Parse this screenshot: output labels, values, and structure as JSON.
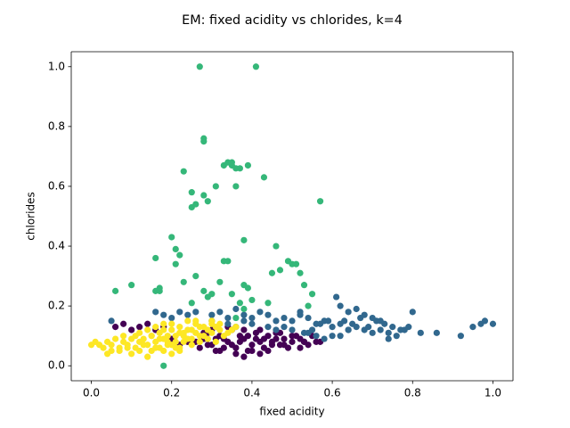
{
  "chart_data": {
    "type": "scatter",
    "title": "EM: fixed acidity vs chlorides, k=4",
    "xlabel": "fixed acidity",
    "ylabel": "chlorides",
    "xlim": [
      -0.05,
      1.05
    ],
    "ylim": [
      -0.05,
      1.05
    ],
    "xticks": [
      "0.0",
      "0.2",
      "0.4",
      "0.6",
      "0.8",
      "1.0"
    ],
    "yticks": [
      "0.0",
      "0.2",
      "0.4",
      "0.6",
      "0.8",
      "1.0"
    ],
    "grid": false,
    "legend": "none",
    "colors": {
      "cluster_0": "#440154",
      "cluster_1": "#31688e",
      "cluster_2": "#35b779",
      "cluster_3": "#fde725"
    },
    "series": [
      {
        "color": "#440154",
        "x": [
          0.26,
          0.28,
          0.3,
          0.32,
          0.34,
          0.36,
          0.38,
          0.4,
          0.42,
          0.44,
          0.46,
          0.48,
          0.5,
          0.52,
          0.54,
          0.56,
          0.27,
          0.29,
          0.31,
          0.33,
          0.35,
          0.37,
          0.39,
          0.41,
          0.43,
          0.45,
          0.47,
          0.49,
          0.51,
          0.53,
          0.3,
          0.34,
          0.38,
          0.42,
          0.46,
          0.5,
          0.36,
          0.4,
          0.44,
          0.32,
          0.28,
          0.48,
          0.52,
          0.24,
          0.22,
          0.2,
          0.55,
          0.57,
          0.35,
          0.41,
          0.45,
          0.39,
          0.33,
          0.37,
          0.43,
          0.47,
          0.31,
          0.29,
          0.53,
          0.06,
          0.08,
          0.12,
          0.14,
          0.16,
          0.18,
          0.1,
          0.38,
          0.42
        ],
        "y": [
          0.08,
          0.09,
          0.07,
          0.1,
          0.08,
          0.06,
          0.09,
          0.07,
          0.08,
          0.1,
          0.09,
          0.07,
          0.08,
          0.09,
          0.07,
          0.08,
          0.06,
          0.11,
          0.05,
          0.09,
          0.12,
          0.1,
          0.05,
          0.11,
          0.06,
          0.07,
          0.11,
          0.06,
          0.1,
          0.08,
          0.12,
          0.13,
          0.12,
          0.12,
          0.11,
          0.1,
          0.04,
          0.05,
          0.05,
          0.05,
          0.11,
          0.09,
          0.06,
          0.08,
          0.07,
          0.09,
          0.1,
          0.08,
          0.07,
          0.09,
          0.08,
          0.1,
          0.06,
          0.08,
          0.09,
          0.07,
          0.09,
          0.07,
          0.08,
          0.13,
          0.14,
          0.13,
          0.14,
          0.12,
          0.13,
          0.12,
          0.03,
          0.04
        ]
      },
      {
        "color": "#31688e",
        "x": [
          0.05,
          0.16,
          0.18,
          0.2,
          0.22,
          0.24,
          0.26,
          0.3,
          0.32,
          0.34,
          0.36,
          0.38,
          0.4,
          0.42,
          0.44,
          0.46,
          0.48,
          0.5,
          0.52,
          0.54,
          0.56,
          0.58,
          0.6,
          0.62,
          0.64,
          0.66,
          0.68,
          0.7,
          0.72,
          0.74,
          0.76,
          0.78,
          0.8,
          0.82,
          0.86,
          0.92,
          0.97,
          0.98,
          1.0,
          0.95,
          0.61,
          0.62,
          0.64,
          0.66,
          0.68,
          0.48,
          0.5,
          0.53,
          0.56,
          0.58,
          0.6,
          0.44,
          0.46,
          0.4,
          0.38,
          0.36,
          0.34,
          0.3,
          0.55,
          0.57,
          0.59,
          0.63,
          0.65,
          0.67,
          0.69,
          0.71,
          0.73,
          0.75,
          0.77,
          0.79,
          0.72,
          0.7,
          0.74,
          0.52,
          0.54,
          0.62,
          0.64
        ],
        "y": [
          0.15,
          0.18,
          0.17,
          0.16,
          0.18,
          0.17,
          0.18,
          0.17,
          0.18,
          0.16,
          0.19,
          0.17,
          0.16,
          0.18,
          0.17,
          0.15,
          0.16,
          0.15,
          0.17,
          0.16,
          0.14,
          0.15,
          0.13,
          0.14,
          0.12,
          0.13,
          0.12,
          0.11,
          0.12,
          0.11,
          0.1,
          0.12,
          0.18,
          0.11,
          0.11,
          0.1,
          0.14,
          0.15,
          0.14,
          0.13,
          0.23,
          0.2,
          0.18,
          0.19,
          0.17,
          0.13,
          0.12,
          0.11,
          0.1,
          0.09,
          0.1,
          0.13,
          0.12,
          0.14,
          0.15,
          0.13,
          0.14,
          0.15,
          0.12,
          0.14,
          0.15,
          0.15,
          0.14,
          0.16,
          0.13,
          0.15,
          0.14,
          0.13,
          0.12,
          0.13,
          0.15,
          0.16,
          0.09,
          0.18,
          0.11,
          0.1,
          0.12
        ]
      },
      {
        "color": "#35b779",
        "x": [
          0.27,
          0.41,
          0.28,
          0.28,
          0.33,
          0.34,
          0.35,
          0.37,
          0.36,
          0.39,
          0.35,
          0.43,
          0.23,
          0.25,
          0.26,
          0.31,
          0.28,
          0.25,
          0.29,
          0.36,
          0.57,
          0.2,
          0.21,
          0.16,
          0.22,
          0.21,
          0.33,
          0.38,
          0.46,
          0.49,
          0.5,
          0.51,
          0.17,
          0.23,
          0.06,
          0.1,
          0.16,
          0.17,
          0.26,
          0.34,
          0.38,
          0.39,
          0.52,
          0.53,
          0.55,
          0.54,
          0.3,
          0.35,
          0.32,
          0.37,
          0.38,
          0.44,
          0.45,
          0.47,
          0.25,
          0.29,
          0.28,
          0.4,
          0.36,
          0.18
        ],
        "y": [
          1.0,
          1.0,
          0.76,
          0.75,
          0.67,
          0.68,
          0.67,
          0.66,
          0.66,
          0.67,
          0.68,
          0.63,
          0.65,
          0.58,
          0.54,
          0.6,
          0.57,
          0.53,
          0.55,
          0.6,
          0.55,
          0.43,
          0.39,
          0.36,
          0.37,
          0.34,
          0.35,
          0.42,
          0.4,
          0.35,
          0.34,
          0.34,
          0.26,
          0.28,
          0.25,
          0.27,
          0.25,
          0.25,
          0.3,
          0.35,
          0.27,
          0.26,
          0.31,
          0.27,
          0.24,
          0.2,
          0.24,
          0.24,
          0.28,
          0.21,
          0.19,
          0.21,
          0.31,
          0.32,
          0.21,
          0.23,
          0.25,
          0.22,
          0.16,
          0.0
        ]
      },
      {
        "color": "#fde725",
        "x": [
          0.0,
          0.01,
          0.02,
          0.03,
          0.04,
          0.05,
          0.06,
          0.07,
          0.08,
          0.09,
          0.1,
          0.11,
          0.12,
          0.13,
          0.14,
          0.15,
          0.16,
          0.17,
          0.18,
          0.19,
          0.2,
          0.21,
          0.22,
          0.23,
          0.24,
          0.25,
          0.26,
          0.27,
          0.28,
          0.29,
          0.3,
          0.31,
          0.32,
          0.33,
          0.34,
          0.35,
          0.05,
          0.07,
          0.09,
          0.11,
          0.13,
          0.15,
          0.17,
          0.19,
          0.21,
          0.23,
          0.25,
          0.27,
          0.29,
          0.31,
          0.12,
          0.14,
          0.16,
          0.18,
          0.2,
          0.22,
          0.24,
          0.26,
          0.28,
          0.3,
          0.15,
          0.17,
          0.19,
          0.21,
          0.23,
          0.25,
          0.27,
          0.1,
          0.12,
          0.14,
          0.16,
          0.18,
          0.2,
          0.22,
          0.04,
          0.08,
          0.18,
          0.24,
          0.26,
          0.3,
          0.32,
          0.36,
          0.2,
          0.22
        ],
        "y": [
          0.07,
          0.08,
          0.07,
          0.06,
          0.08,
          0.07,
          0.09,
          0.06,
          0.08,
          0.07,
          0.09,
          0.1,
          0.08,
          0.09,
          0.07,
          0.1,
          0.08,
          0.11,
          0.09,
          0.1,
          0.12,
          0.08,
          0.11,
          0.1,
          0.09,
          0.12,
          0.11,
          0.13,
          0.1,
          0.12,
          0.11,
          0.13,
          0.12,
          0.1,
          0.11,
          0.12,
          0.05,
          0.05,
          0.06,
          0.06,
          0.07,
          0.05,
          0.06,
          0.07,
          0.06,
          0.08,
          0.07,
          0.08,
          0.09,
          0.08,
          0.11,
          0.12,
          0.13,
          0.12,
          0.14,
          0.13,
          0.12,
          0.14,
          0.13,
          0.14,
          0.1,
          0.09,
          0.08,
          0.1,
          0.11,
          0.09,
          0.1,
          0.04,
          0.05,
          0.03,
          0.06,
          0.05,
          0.07,
          0.06,
          0.04,
          0.1,
          0.14,
          0.15,
          0.15,
          0.15,
          0.14,
          0.13,
          0.04,
          0.05
        ]
      }
    ]
  }
}
